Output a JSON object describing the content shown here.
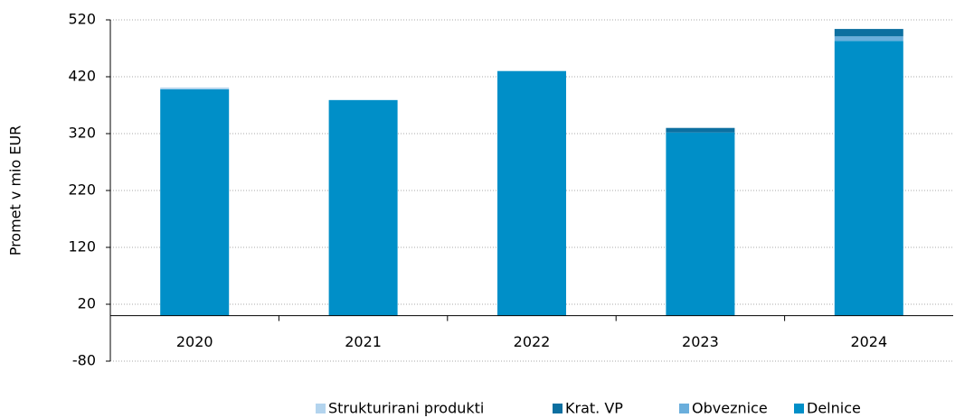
{
  "chart_data": {
    "type": "stacked_bar",
    "y_label": "Promet v mio EUR",
    "categories": [
      "2020",
      "2021",
      "2022",
      "2023",
      "2024"
    ],
    "series": [
      {
        "name": "Delnice",
        "color": "#008fc8",
        "values": [
          398,
          379,
          430,
          322,
          483
        ]
      },
      {
        "name": "Obveznice",
        "color": "#6aaedc",
        "values": [
          0,
          0,
          0,
          0,
          8
        ]
      },
      {
        "name": "Krat. VP",
        "color": "#0c6fa0",
        "values": [
          0,
          0,
          0,
          8,
          13
        ]
      },
      {
        "name": "Strukturirani produkti",
        "color": "#b3d4ee",
        "values": [
          3,
          0,
          0,
          0,
          0
        ]
      }
    ],
    "legend_order": [
      3,
      2,
      1,
      0
    ],
    "ylim": [
      -80,
      520
    ],
    "yticks": [
      -80,
      20,
      120,
      220,
      320,
      420,
      520
    ],
    "grid": true
  }
}
